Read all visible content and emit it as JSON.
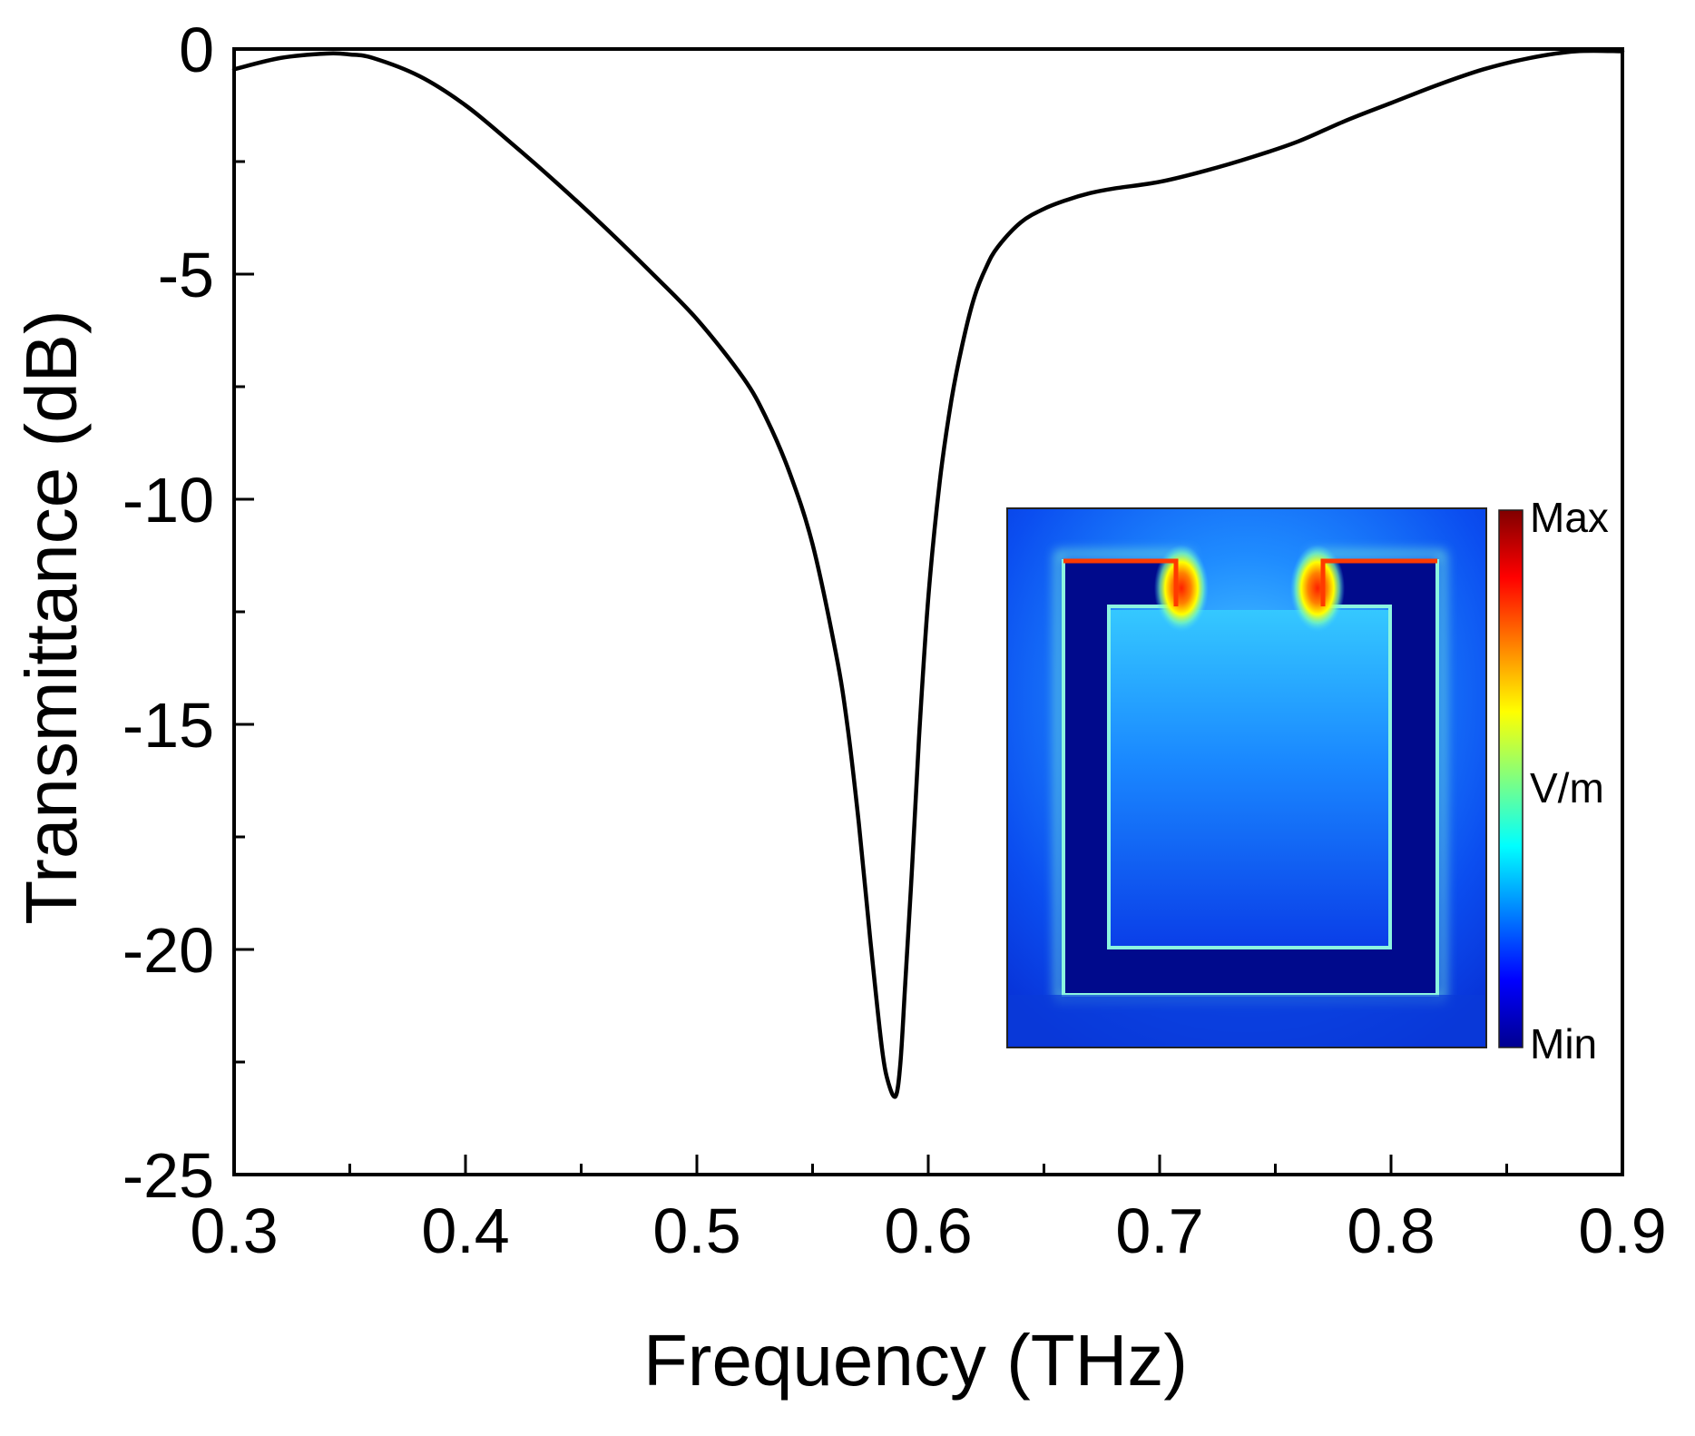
{
  "chart_data": {
    "type": "line",
    "title": "",
    "xlabel": "Frequency (THz)",
    "ylabel": "Transmittance (dB)",
    "xlim": [
      0.3,
      0.9
    ],
    "ylim": [
      -25,
      0
    ],
    "x_ticks": [
      0.3,
      0.4,
      0.5,
      0.6,
      0.7,
      0.8,
      0.9
    ],
    "x_tick_labels": [
      "0.3",
      "0.4",
      "0.5",
      "0.6",
      "0.7",
      "0.8",
      "0.9"
    ],
    "y_ticks": [
      0,
      -5,
      -10,
      -15,
      -20,
      -25
    ],
    "y_tick_labels": [
      "0",
      "-5",
      "-10",
      "-15",
      "-20",
      "-25"
    ],
    "grid": false,
    "series": [
      {
        "name": "Transmittance",
        "color": "#000000",
        "x": [
          0.3,
          0.32,
          0.34,
          0.35,
          0.36,
          0.38,
          0.4,
          0.42,
          0.44,
          0.46,
          0.48,
          0.5,
          0.52,
          0.53,
          0.54,
          0.55,
          0.56,
          0.565,
          0.57,
          0.575,
          0.58,
          0.583,
          0.586,
          0.588,
          0.59,
          0.593,
          0.596,
          0.6,
          0.605,
          0.61,
          0.615,
          0.62,
          0.625,
          0.63,
          0.64,
          0.65,
          0.66,
          0.67,
          0.68,
          0.7,
          0.72,
          0.74,
          0.76,
          0.78,
          0.8,
          0.82,
          0.84,
          0.86,
          0.88,
          0.9
        ],
        "values": [
          -0.45,
          -0.2,
          -0.1,
          -0.12,
          -0.2,
          -0.6,
          -1.25,
          -2.1,
          -3.0,
          -3.95,
          -4.95,
          -6.0,
          -7.3,
          -8.2,
          -9.4,
          -11.0,
          -13.4,
          -15.0,
          -17.2,
          -19.8,
          -22.2,
          -23.0,
          -23.25,
          -22.5,
          -20.8,
          -18.2,
          -15.3,
          -12.2,
          -9.6,
          -7.8,
          -6.5,
          -5.5,
          -4.85,
          -4.4,
          -3.85,
          -3.55,
          -3.35,
          -3.2,
          -3.1,
          -2.95,
          -2.7,
          -2.4,
          -2.05,
          -1.6,
          -1.2,
          -0.8,
          -0.45,
          -0.2,
          -0.05,
          -0.05
        ]
      }
    ],
    "inset": {
      "type": "heatmap",
      "colorbar_labels": {
        "max": "Max",
        "mid": "V/m",
        "min": "Min"
      },
      "colorbar_colors": [
        "#00008f",
        "#0000ff",
        "#0080ff",
        "#00ffff",
        "#80ff80",
        "#ffff00",
        "#ff8000",
        "#ff0000",
        "#800000"
      ],
      "background_color": "#0a40e6",
      "resonator_color": "#000a8c"
    }
  }
}
